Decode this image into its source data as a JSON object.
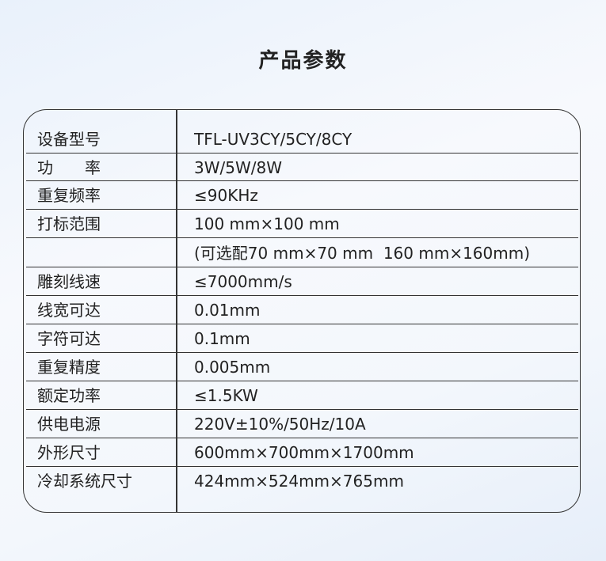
{
  "title": "产品参数",
  "rows": [
    {
      "label": "设备型号",
      "value": "TFL-UV3CY/5CY/8CY"
    },
    {
      "label": "功　　率",
      "value": "3W/5W/8W"
    },
    {
      "label": "重复频率",
      "value": "≤90KHz"
    },
    {
      "label": "打标范围",
      "value": "100 mm×100 mm"
    },
    {
      "label": "",
      "value": "(可选配70 mm×70 mm  160 mm×160mm)"
    },
    {
      "label": "雕刻线速",
      "value": "≤7000mm/s"
    },
    {
      "label": "线宽可达",
      "value": "0.01mm"
    },
    {
      "label": "字符可达",
      "value": "0.1mm"
    },
    {
      "label": "重复精度",
      "value": "0.005mm"
    },
    {
      "label": "额定功率",
      "value": "≤1.5KW"
    },
    {
      "label": "供电电源",
      "value": "220V±10%/50Hz/10A"
    },
    {
      "label": "外形尺寸",
      "value": "600mm×700mm×1700mm"
    },
    {
      "label": "冷却系统尺寸",
      "value": "424mm×524mm×765mm"
    }
  ]
}
